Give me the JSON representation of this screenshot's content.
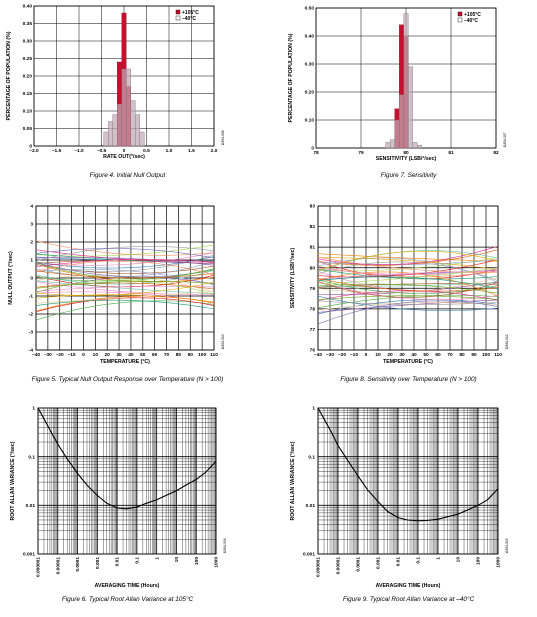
{
  "colors": {
    "hot": "#c8102e",
    "cold": "#bfa7b4",
    "cold_light": "#d9d0d8",
    "grid": "#000000"
  },
  "charts": [
    {
      "id": "fig4",
      "type": "bar",
      "caption": "Figure 4. Initial Null Output",
      "side_code": "11834-008",
      "xlabel": "RATE OUT(°/sec)",
      "ylabel": "PERCENTAGE OF POPULATION (%)",
      "xlim": [
        -2.0,
        2.0
      ],
      "ylim": [
        0,
        0.4
      ],
      "xticks": [
        "-2.0",
        "-1.5",
        "-1.0",
        "-0.5",
        "0",
        "0.5",
        "1.0",
        "1.5",
        "2.0"
      ],
      "yticks": [
        "0",
        "0.05",
        "0.10",
        "0.15",
        "0.20",
        "0.25",
        "0.30",
        "0.35",
        "0.40"
      ],
      "bin_width": 0.1,
      "legend": [
        "+105°C",
        "–40°C"
      ],
      "series": [
        {
          "name": "+105°C",
          "x": [
            -0.1,
            0.0,
            0.1
          ],
          "values": [
            0.24,
            0.38,
            0.17
          ]
        },
        {
          "name": "–40°C",
          "x": [
            -0.4,
            -0.3,
            -0.2,
            -0.1,
            0.0,
            0.1,
            0.2,
            0.3,
            0.4
          ],
          "values": [
            0.04,
            0.07,
            0.09,
            0.12,
            0.22,
            0.22,
            0.13,
            0.09,
            0.04
          ]
        }
      ]
    },
    {
      "id": "fig7",
      "type": "bar",
      "caption": "Figure 7. Sensitivity",
      "side_code": "11834-007",
      "xlabel": "SENSITIVITY (LSB/°/sec)",
      "ylabel": "PERCENTAGE OF POPULATION (%)",
      "xlim": [
        78,
        82
      ],
      "ylim": [
        0,
        0.5
      ],
      "xticks": [
        "78",
        "79",
        "80",
        "81",
        "82"
      ],
      "yticks": [
        "0",
        "0.10",
        "0.20",
        "0.30",
        "0.40",
        "0.50"
      ],
      "bin_width": 0.1,
      "legend": [
        "+105°C",
        "–40°C"
      ],
      "series": [
        {
          "name": "+105°C",
          "x": [
            79.8,
            79.9,
            80.0
          ],
          "values": [
            0.14,
            0.44,
            0.4
          ]
        },
        {
          "name": "–40°C",
          "x": [
            79.6,
            79.7,
            79.8,
            79.9,
            80.0,
            80.1,
            80.2,
            80.3
          ],
          "values": [
            0.02,
            0.03,
            0.1,
            0.19,
            0.48,
            0.29,
            0.02,
            0.01
          ]
        }
      ]
    },
    {
      "id": "fig5",
      "type": "line",
      "caption": "Figure 5. Typical Null Output Response over Temperature (N > 100)",
      "side_code": "11834-010",
      "xlabel": "TEMPERATURE (°C)",
      "ylabel": "NULL OUTPUT (°/sec)",
      "xlim": [
        -40,
        110
      ],
      "ylim": [
        -4,
        4
      ],
      "xticks": [
        "-40",
        "-30",
        "-20",
        "-10",
        "0",
        "10",
        "20",
        "30",
        "40",
        "50",
        "60",
        "70",
        "80",
        "90",
        "100",
        "110"
      ],
      "yticks": [
        "-4",
        "-3",
        "-2",
        "-1",
        "0",
        "1",
        "2",
        "3",
        "4"
      ],
      "curve_count": 40,
      "curve_base": 0,
      "curve_spread": 3.2,
      "curve_seed": 5
    },
    {
      "id": "fig8",
      "type": "line",
      "caption": "Figure 8. Sensitivity over Temperature (N > 100)",
      "side_code": "11834-012",
      "xlabel": "TEMPERATURE (°C)",
      "ylabel": "SENSITIVITY (LSB/°/sec)",
      "xlim": [
        -40,
        110
      ],
      "ylim": [
        76,
        83
      ],
      "xticks": [
        "-40",
        "-30",
        "-20",
        "-10",
        "0",
        "10",
        "20",
        "30",
        "40",
        "50",
        "60",
        "70",
        "80",
        "90",
        "100",
        "110"
      ],
      "yticks": [
        "76",
        "77",
        "78",
        "79",
        "80",
        "81",
        "82",
        "83"
      ],
      "curve_count": 40,
      "curve_base": 79.3,
      "curve_spread": 2.6,
      "curve_seed": 11
    },
    {
      "id": "fig6",
      "type": "line",
      "caption": "Figure 6. Typical Root Allan Variance at 105°C",
      "side_code": "11834-016",
      "xlabel": "AVERAGING TIME (Hours)",
      "ylabel": "ROOT ALLAN VARIANCE (°/sec)",
      "xscale": "log",
      "yscale": "log",
      "xlim": [
        1e-06,
        1000
      ],
      "ylim": [
        0.001,
        1
      ],
      "xticks": [
        "0.000001",
        "0.00001",
        "0.0001",
        "0.001",
        "0.01",
        "0.1",
        "1",
        "10",
        "100",
        "1000"
      ],
      "yticks": [
        "0.001",
        "0.01",
        "0.1",
        "1"
      ],
      "series": [
        {
          "x": [
            1e-06,
            2e-06,
            5e-06,
            1e-05,
            3e-05,
            0.0001,
            0.0003,
            0.001,
            0.003,
            0.01,
            0.03,
            0.1,
            0.3,
            1,
            3,
            10,
            30,
            100,
            300,
            1000
          ],
          "values": [
            1.0,
            0.6,
            0.3,
            0.18,
            0.09,
            0.045,
            0.026,
            0.016,
            0.011,
            0.0088,
            0.0085,
            0.0092,
            0.011,
            0.013,
            0.016,
            0.02,
            0.026,
            0.034,
            0.048,
            0.08
          ]
        }
      ]
    },
    {
      "id": "fig9",
      "type": "line",
      "caption": "Figure 9. Typical Root Allan Variance at –40°C",
      "side_code": "11834-015",
      "xlabel": "AVERAGING TIME (Hours)",
      "ylabel": "ROOT ALLAN VARIANCE (°/sec)",
      "xscale": "log",
      "yscale": "log",
      "xlim": [
        1e-06,
        1000
      ],
      "ylim": [
        0.001,
        1
      ],
      "xticks": [
        "0.000001",
        "0.00001",
        "0.0001",
        "0.001",
        "0.01",
        "0.1",
        "1",
        "10",
        "100",
        "1000"
      ],
      "yticks": [
        "0.001",
        "0.01",
        "0.1",
        "1"
      ],
      "series": [
        {
          "x": [
            1e-06,
            2e-06,
            5e-06,
            1e-05,
            3e-05,
            0.0001,
            0.0003,
            0.001,
            0.003,
            0.01,
            0.03,
            0.1,
            0.3,
            1,
            3,
            10,
            30,
            100,
            300,
            1000
          ],
          "values": [
            1.0,
            0.6,
            0.3,
            0.17,
            0.085,
            0.04,
            0.021,
            0.012,
            0.0075,
            0.0056,
            0.005,
            0.0048,
            0.0049,
            0.0052,
            0.0058,
            0.0066,
            0.008,
            0.01,
            0.013,
            0.022
          ]
        }
      ]
    }
  ]
}
